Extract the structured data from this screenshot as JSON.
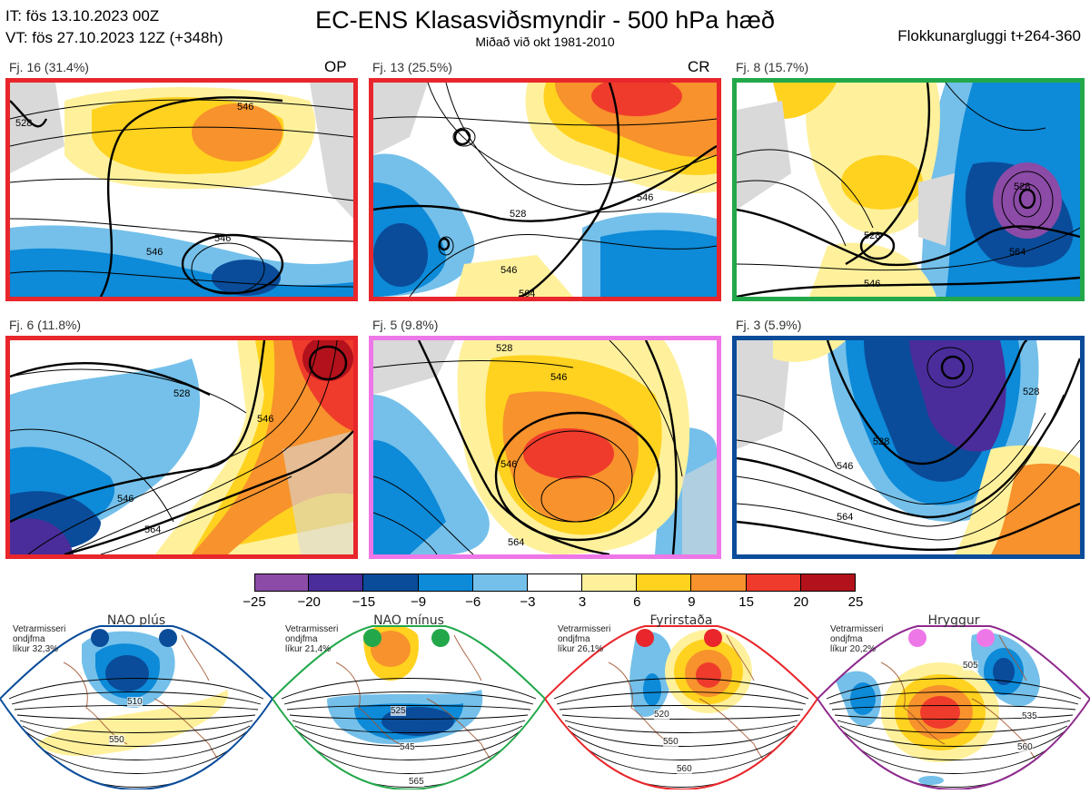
{
  "header": {
    "it_line": "IT: fös 13.10.2023 00Z",
    "vt_line": "VT: fös 27.10.2023 12Z  (+348h)",
    "title": "EC-ENS Klasasviðsmyndir - 500 hPa hæð",
    "subtitle": "Miðað við okt 1981-2010",
    "window": "Flokkunargluggi t+264-360"
  },
  "panels": [
    {
      "label": "Fj. 16 (31.4%)",
      "tag": "OP",
      "border": "#e8262b",
      "c1": "546",
      "c2": "546",
      "c3": "528",
      "c4": "546"
    },
    {
      "label": "Fj. 13 (25.5%)",
      "tag": "CR",
      "border": "#e8262b",
      "c1": "528",
      "c2": "546",
      "c3": "564",
      "c4": "546"
    },
    {
      "label": "Fj. 8 (15.7%)",
      "tag": "",
      "border": "#22a84a",
      "c1": "528",
      "c2": "528",
      "c3": "546",
      "c4": "564"
    },
    {
      "label": "Fj. 6 (11.8%)",
      "tag": "",
      "border": "#e8262b",
      "c1": "528",
      "c2": "546",
      "c3": "564",
      "c4": "546"
    },
    {
      "label": "Fj. 5 (9.8%)",
      "tag": "",
      "border": "#ee77e8",
      "c1": "528",
      "c2": "546",
      "c3": "564",
      "c4": "546"
    },
    {
      "label": "Fj. 3 (5.9%)",
      "tag": "",
      "border": "#0a4c9a",
      "c1": "528",
      "c2": "546",
      "c3": "564",
      "c4": "528"
    }
  ],
  "colorbar": {
    "ticks": [
      "−25",
      "−20",
      "−15",
      "−9",
      "−6",
      "−3",
      "3",
      "6",
      "9",
      "15",
      "20",
      "25"
    ],
    "colors": [
      "#8b4ba6",
      "#4a2d9a",
      "#0a4c9a",
      "#0d8ad8",
      "#74c0ea",
      "#ffffff",
      "#fff19c",
      "#ffd21f",
      "#f7922c",
      "#ef3b2c",
      "#b3121c"
    ]
  },
  "regimes": [
    {
      "name": "NAO plús",
      "note1": "Vetrarmisseri",
      "note2": "ondjfma",
      "note3": "líkur 32,3%",
      "border": "#0a4c9a",
      "dot": "#0a4c9a",
      "c1": "510",
      "c2": "550",
      "c3": ""
    },
    {
      "name": "NAO mínus",
      "note1": "Vetrarmisseri",
      "note2": "ondjfma",
      "note3": "líkur 21,4%",
      "border": "#22a84a",
      "dot": "#22a84a",
      "c1": "525",
      "c2": "545",
      "c3": "565"
    },
    {
      "name": "Fyrirstaða",
      "note1": "Vetrarmisseri",
      "note2": "ondjfma",
      "note3": "líkur 26,1%",
      "border": "#e8262b",
      "dot": "#e8262b",
      "c1": "520",
      "c2": "550",
      "c3": "560"
    },
    {
      "name": "Hryggur",
      "note1": "Vetrarmisseri",
      "note2": "ondjfma",
      "note3": "líkur 20,2%",
      "border": "#8e2a8e",
      "dot": "#ee77e8",
      "c1": "505",
      "c2": "535",
      "c3": "560"
    }
  ]
}
